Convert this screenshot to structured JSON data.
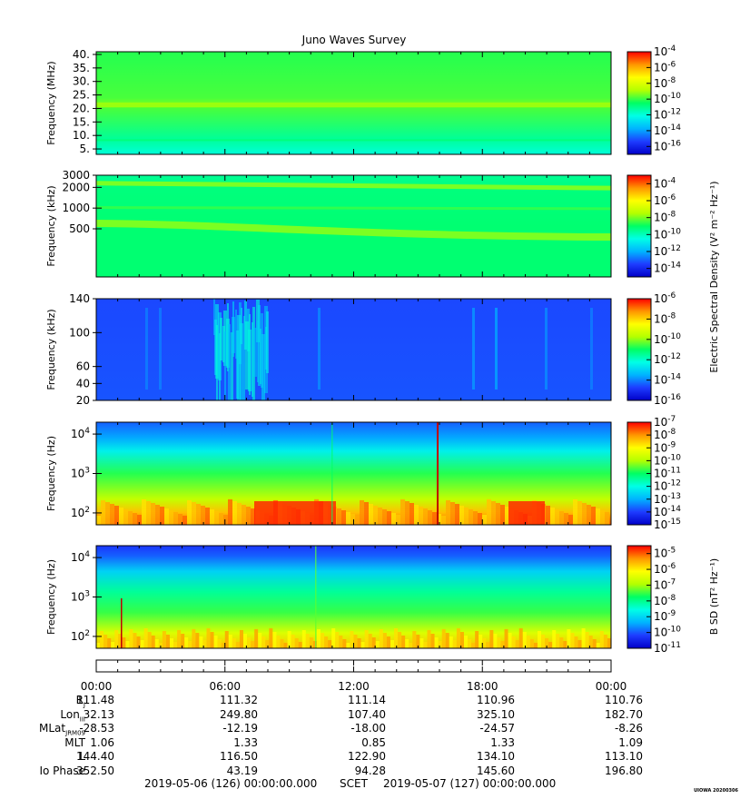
{
  "title": "Juno Waves Survey",
  "colors": {
    "background": "#ffffff",
    "colormap": [
      "#0000c8",
      "#1e3cff",
      "#00b4ff",
      "#00ffe6",
      "#00ff64",
      "#b4ff00",
      "#ffff00",
      "#ff9600",
      "#ff0000"
    ]
  },
  "chart_data": [
    {
      "type": "heatmap",
      "panel": "high-frequency",
      "ylabel": "Frequency (MHz)",
      "y_scale": "linear",
      "y_ticks": [
        "40.",
        "35.",
        "30.",
        "25.",
        "20.",
        "15.",
        "10.",
        "5."
      ],
      "y_tick_values": [
        40,
        35,
        30,
        25,
        20,
        15,
        10,
        5
      ],
      "ylim": [
        3,
        41
      ],
      "colorbar_ticks": [
        "-4",
        "-6",
        "-8",
        "-10",
        "-12",
        "-14",
        "-16"
      ],
      "colorbar_range": [
        -17,
        -4
      ]
    },
    {
      "type": "heatmap",
      "panel": "kilohertz",
      "ylabel": "Frequency (kHz)",
      "y_scale": "log",
      "y_ticks": [
        "3000",
        "2000",
        "1000",
        "500"
      ],
      "y_tick_values": [
        3000,
        2000,
        1000,
        500
      ],
      "ylim": [
        100,
        3000
      ],
      "colorbar_ticks": [
        "-4",
        "-6",
        "-8",
        "-10",
        "-12",
        "-14"
      ],
      "colorbar_range": [
        -15,
        -3
      ],
      "colorbar_label": "Electric Spectral Density (V² m⁻² Hz⁻¹)"
    },
    {
      "type": "heatmap",
      "panel": "low-kilohertz",
      "ylabel": "Frequency (kHz)",
      "y_scale": "linear",
      "y_ticks": [
        "140",
        "100",
        "60",
        "40",
        "20"
      ],
      "y_tick_values": [
        140,
        100,
        60,
        40,
        20
      ],
      "ylim": [
        20,
        140
      ],
      "colorbar_ticks": [
        "-6",
        "-8",
        "-10",
        "-12",
        "-14",
        "-16"
      ],
      "colorbar_range": [
        -16,
        -6
      ]
    },
    {
      "type": "heatmap",
      "panel": "electric-hertz",
      "ylabel": "Frequency (Hz)",
      "y_scale": "log",
      "y_ticks": [
        "4",
        "3",
        "2"
      ],
      "y_tick_values": [
        10000,
        1000,
        100
      ],
      "ylim": [
        50,
        20000
      ],
      "colorbar_ticks": [
        "-7",
        "-8",
        "-9",
        "-10",
        "-11",
        "-12",
        "-13",
        "-14",
        "-15"
      ],
      "colorbar_range": [
        -15,
        -7
      ]
    },
    {
      "type": "heatmap",
      "panel": "magnetic-hertz",
      "ylabel": "Frequency (Hz)",
      "y_scale": "log",
      "y_ticks": [
        "4",
        "3",
        "2"
      ],
      "y_tick_values": [
        10000,
        1000,
        100
      ],
      "ylim": [
        50,
        20000
      ],
      "colorbar_ticks": [
        "-5",
        "-6",
        "-7",
        "-8",
        "-9",
        "-10",
        "-11"
      ],
      "colorbar_range": [
        -11,
        -4.5
      ],
      "colorbar_label": "B SD (nT² Hz⁻¹)"
    }
  ],
  "time_axis": {
    "ticks": [
      "00:00",
      "06:00",
      "12:00",
      "18:00",
      "00:00"
    ],
    "tick_hours": [
      0,
      6,
      12,
      18,
      24
    ]
  },
  "ephemeris": [
    {
      "label": "R",
      "sub": "J",
      "values": [
        "111.48",
        "111.32",
        "111.14",
        "110.96",
        "110.76"
      ]
    },
    {
      "label": "Lon",
      "sub": "III",
      "values": [
        "32.13",
        "249.80",
        "107.40",
        "325.10",
        "182.70"
      ]
    },
    {
      "label": "MLat",
      "sub": "JRM09",
      "values": [
        "-28.53",
        "-12.19",
        "-18.00",
        "-24.57",
        "-8.26"
      ]
    },
    {
      "label": "MLT",
      "sub": "",
      "values": [
        "1.06",
        "1.33",
        "0.85",
        "1.33",
        "1.09"
      ]
    },
    {
      "label": "L",
      "sub": "",
      "values": [
        "144.40",
        "116.50",
        "122.90",
        "134.10",
        "113.10"
      ]
    },
    {
      "label": "Io Phase",
      "sub": "",
      "values": [
        "352.50",
        "43.19",
        "94.28",
        "145.60",
        "196.80"
      ]
    }
  ],
  "footer": {
    "start": "2019-05-06 (126) 00:00:00.000",
    "scet": "SCET",
    "end": "2019-05-07 (127) 00:00:00.000"
  },
  "version": "UIOWA 20200306"
}
